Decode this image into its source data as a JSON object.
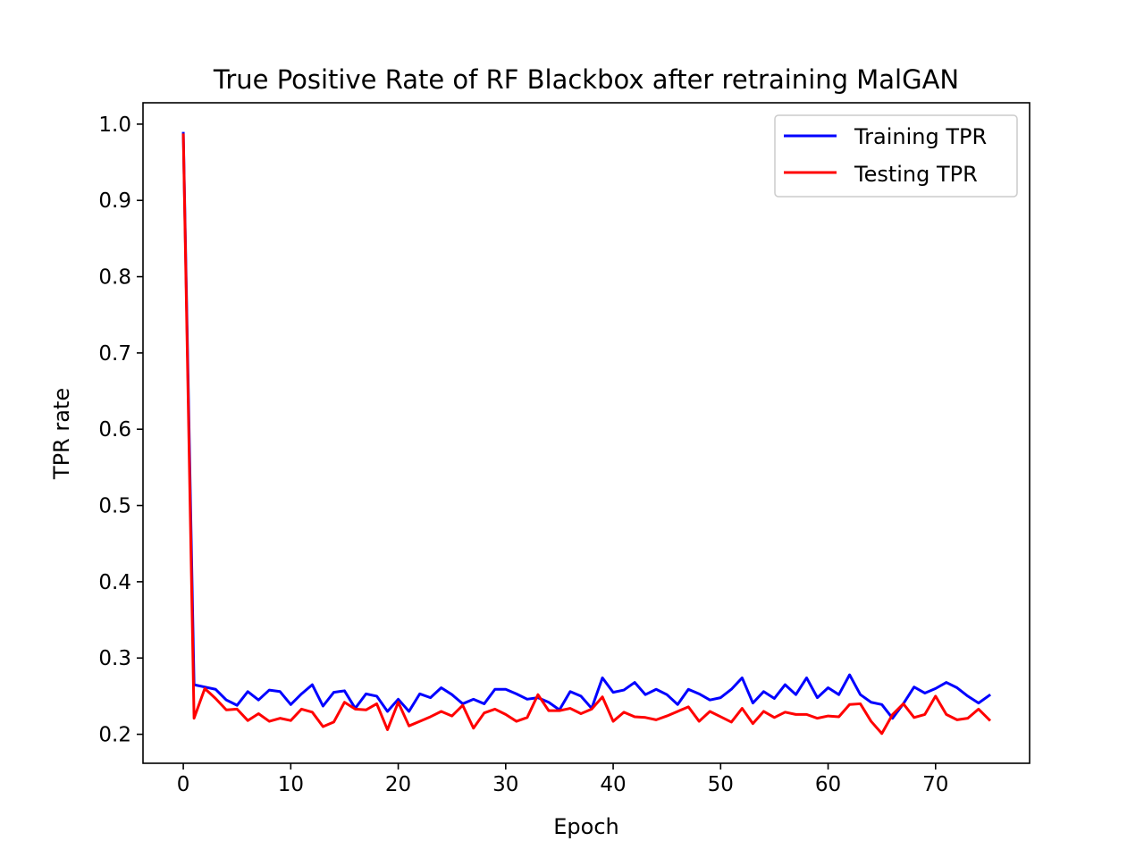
{
  "chart_data": {
    "type": "line",
    "title": "True Positive Rate of RF Blackbox after retraining MalGAN",
    "xlabel": "Epoch",
    "ylabel": "TPR rate",
    "xlim": [
      -3.75,
      78.75
    ],
    "ylim": [
      0.162,
      1.028
    ],
    "x_ticks": [
      0,
      10,
      20,
      30,
      40,
      50,
      60,
      70
    ],
    "x_tick_labels": [
      "0",
      "10",
      "20",
      "30",
      "40",
      "50",
      "60",
      "70"
    ],
    "y_ticks": [
      0.2,
      0.3,
      0.4,
      0.5,
      0.6,
      0.7,
      0.8,
      0.9,
      1.0
    ],
    "y_tick_labels": [
      "0.2",
      "0.3",
      "0.4",
      "0.5",
      "0.6",
      "0.7",
      "0.8",
      "0.9",
      "1.0"
    ],
    "grid": false,
    "legend_position": "top-right",
    "x": [
      0,
      1,
      2,
      3,
      4,
      5,
      6,
      7,
      8,
      9,
      10,
      11,
      12,
      13,
      14,
      15,
      16,
      17,
      18,
      19,
      20,
      21,
      22,
      23,
      24,
      25,
      26,
      27,
      28,
      29,
      30,
      31,
      32,
      33,
      34,
      35,
      36,
      37,
      38,
      39,
      40,
      41,
      42,
      43,
      44,
      45,
      46,
      47,
      48,
      49,
      50,
      51,
      52,
      53,
      54,
      55,
      56,
      57,
      58,
      59,
      60,
      61,
      62,
      63,
      64,
      65,
      66,
      67,
      68,
      69,
      70,
      71,
      72,
      73,
      74,
      75
    ],
    "series": [
      {
        "name": "Training TPR",
        "color": "#0000ff",
        "values": [
          0.988,
          0.265,
          0.262,
          0.259,
          0.245,
          0.238,
          0.256,
          0.245,
          0.258,
          0.256,
          0.239,
          0.253,
          0.265,
          0.237,
          0.255,
          0.257,
          0.234,
          0.253,
          0.25,
          0.23,
          0.246,
          0.23,
          0.253,
          0.248,
          0.261,
          0.252,
          0.24,
          0.246,
          0.24,
          0.259,
          0.259,
          0.253,
          0.246,
          0.248,
          0.242,
          0.232,
          0.256,
          0.25,
          0.234,
          0.274,
          0.255,
          0.258,
          0.268,
          0.252,
          0.259,
          0.252,
          0.239,
          0.259,
          0.253,
          0.245,
          0.248,
          0.259,
          0.274,
          0.241,
          0.256,
          0.247,
          0.265,
          0.252,
          0.274,
          0.248,
          0.261,
          0.252,
          0.278,
          0.252,
          0.242,
          0.239,
          0.221,
          0.24,
          0.262,
          0.254,
          0.26,
          0.268,
          0.261,
          0.25,
          0.241,
          0.251
        ]
      },
      {
        "name": "Testing TPR",
        "color": "#ff0000",
        "values": [
          0.986,
          0.221,
          0.26,
          0.247,
          0.232,
          0.233,
          0.218,
          0.227,
          0.217,
          0.221,
          0.218,
          0.233,
          0.229,
          0.21,
          0.216,
          0.242,
          0.233,
          0.232,
          0.24,
          0.206,
          0.242,
          0.211,
          0.217,
          0.223,
          0.23,
          0.224,
          0.238,
          0.208,
          0.228,
          0.233,
          0.226,
          0.217,
          0.222,
          0.252,
          0.231,
          0.231,
          0.234,
          0.227,
          0.233,
          0.249,
          0.217,
          0.229,
          0.223,
          0.222,
          0.219,
          0.224,
          0.23,
          0.236,
          0.217,
          0.23,
          0.223,
          0.216,
          0.234,
          0.214,
          0.23,
          0.222,
          0.229,
          0.226,
          0.226,
          0.221,
          0.224,
          0.223,
          0.239,
          0.24,
          0.217,
          0.201,
          0.226,
          0.24,
          0.222,
          0.226,
          0.25,
          0.226,
          0.219,
          0.221,
          0.233,
          0.219
        ]
      }
    ]
  }
}
